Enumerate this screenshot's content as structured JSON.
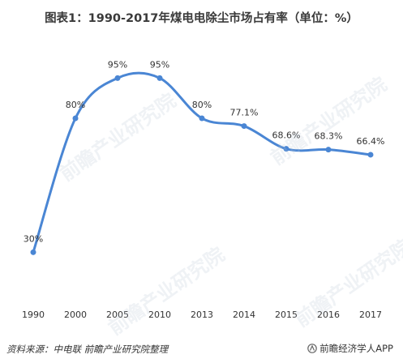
{
  "title": "图表1：1990-2017年煤电电除尘市场占有率（单位：%）",
  "source": "资料来源：中电联 前瞻产业研究院整理",
  "brand": "前瞻经济学人APP",
  "watermark": "前瞻产业研究院",
  "colors": {
    "line": "#4a86d4",
    "text": "#333333"
  },
  "chart_data": {
    "type": "line",
    "title": "图表1：1990-2017年煤电电除尘市场占有率（单位：%）",
    "categories": [
      "1990",
      "2000",
      "2005",
      "2010",
      "2013",
      "2014",
      "2015",
      "2016",
      "2017"
    ],
    "series": [
      {
        "values": [
          30,
          80,
          95,
          95,
          80,
          77.1,
          68.6,
          68.3,
          66.4
        ],
        "labels": [
          "30%",
          "80%",
          "95%",
          "95%",
          "80%",
          "77.1%",
          "68.6%",
          "68.3%",
          "66.4%"
        ]
      }
    ],
    "ylim": [
      18,
      106
    ],
    "grid": false,
    "smooth": true
  }
}
